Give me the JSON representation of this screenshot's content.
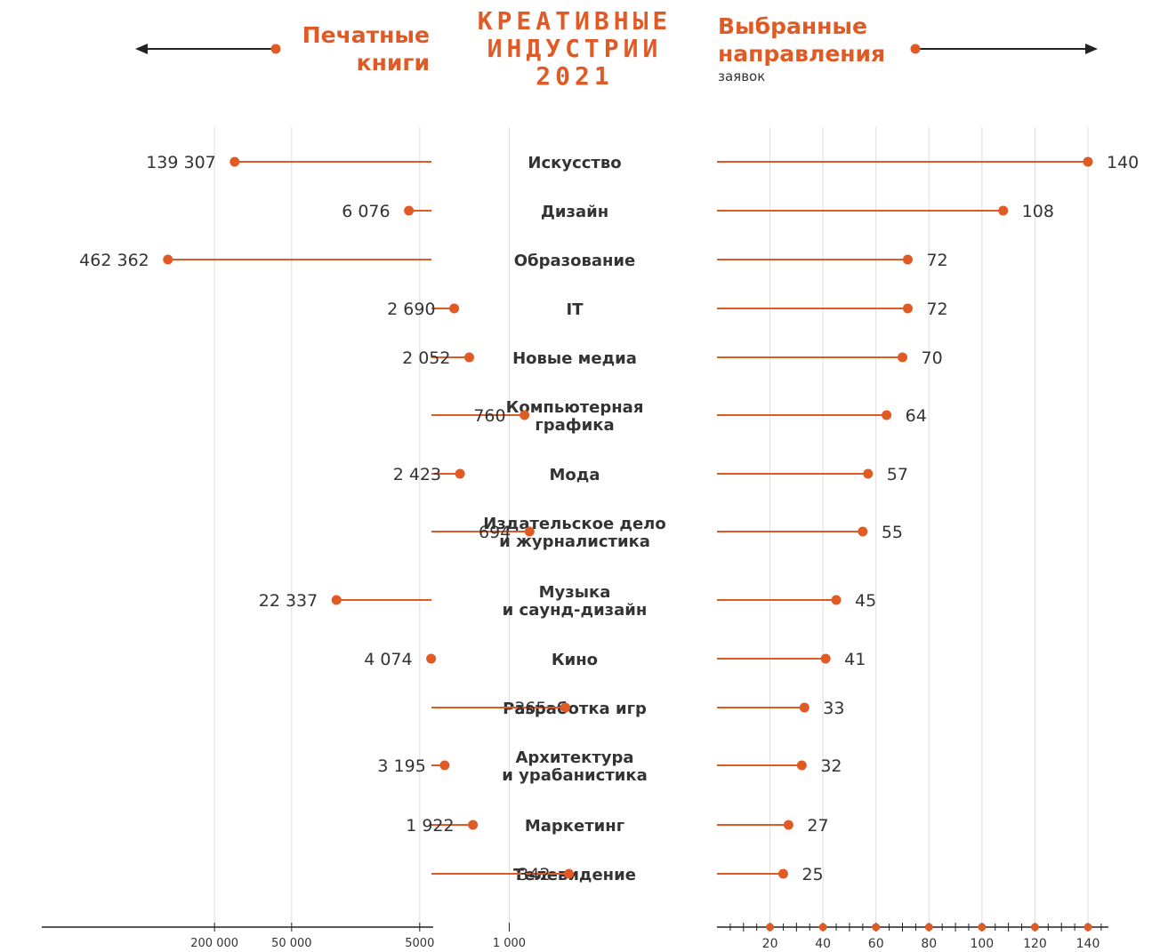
{
  "header": {
    "left_title_line1": "Печатные",
    "left_title_line2": "книги",
    "center_title_line1": "КРЕАТИВНЫЕ",
    "center_title_line2": "ИНДУСТРИИ",
    "center_title_line3": "2021",
    "right_title_line1": "Выбранные",
    "right_title_line2": "направления",
    "right_unit": "заявок"
  },
  "colors": {
    "accent": "#e05a26",
    "text": "#333333",
    "grid": "#dddddd",
    "axis": "#222222"
  },
  "chart_data": [
    {
      "type": "bar",
      "subtype": "lollipop",
      "title": "Печатные книги",
      "scale": "log",
      "direction": "right-to-left",
      "categories": [
        "Искусство",
        "Дизайн",
        "Образование",
        "IT",
        "Новые медиа",
        "Компьютерная графика",
        "Мода",
        "Издательское дело и журналистика",
        "Музыка и саунд-дизайн",
        "Кино",
        "Разработка игр",
        "Архитектура и урабанистика",
        "Маркетинг",
        "Телевидение"
      ],
      "values": [
        139307,
        6076,
        462362,
        2690,
        2052,
        760,
        2423,
        694,
        22337,
        4074,
        365,
        3195,
        1922,
        342
      ],
      "value_labels": [
        "139 307",
        "6 076",
        "462 362",
        "2 690",
        "2 052",
        "760",
        "2 423",
        "694",
        "22 337",
        "4 074",
        "365",
        "3 195",
        "1 922",
        "342"
      ],
      "ticks": [
        200000,
        50000,
        5000,
        1000
      ],
      "tick_labels": [
        "200 000",
        "50 000",
        "5000",
        "1 000"
      ],
      "grid": true
    },
    {
      "type": "bar",
      "subtype": "lollipop",
      "title": "Выбранные направления",
      "ylabel": "заявок",
      "categories": [
        "Искусство",
        "Дизайн",
        "Образование",
        "IT",
        "Новые медиа",
        "Компьютерная графика",
        "Мода",
        "Издательское дело и журналистика",
        "Музыка и саунд-дизайн",
        "Кино",
        "Разработка игр",
        "Архитектура и урабанистика",
        "Маркетинг",
        "Телевидение"
      ],
      "values": [
        140,
        108,
        72,
        72,
        70,
        64,
        57,
        55,
        45,
        41,
        33,
        32,
        27,
        25
      ],
      "ticks": [
        20,
        40,
        60,
        80,
        100,
        120,
        140
      ],
      "xlim": [
        0,
        140
      ],
      "grid": true
    }
  ],
  "rows": [
    {
      "line1": "Искусство",
      "line2": ""
    },
    {
      "line1": "Дизайн",
      "line2": ""
    },
    {
      "line1": "Образование",
      "line2": ""
    },
    {
      "line1": "IT",
      "line2": ""
    },
    {
      "line1": "Новые медиа",
      "line2": ""
    },
    {
      "line1": "Компьютерная",
      "line2": "графика"
    },
    {
      "line1": "Мода",
      "line2": ""
    },
    {
      "line1": "Издательское дело",
      "line2": "и журналистика"
    },
    {
      "line1": "Музыка",
      "line2": "и саунд-дизайн"
    },
    {
      "line1": "Кино",
      "line2": ""
    },
    {
      "line1": "Разработка игр",
      "line2": ""
    },
    {
      "line1": "Архитектура",
      "line2": "и урабанистика"
    },
    {
      "line1": "Маркетинг",
      "line2": ""
    },
    {
      "line1": "Телевидение",
      "line2": ""
    }
  ]
}
